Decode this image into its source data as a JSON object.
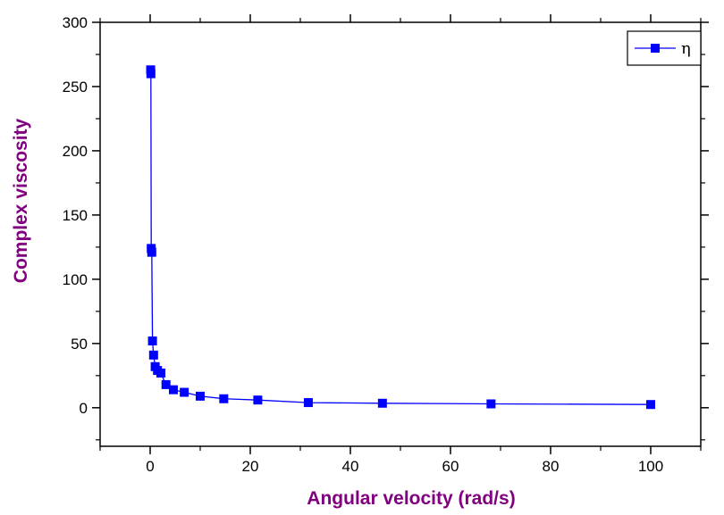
{
  "chart_data": {
    "type": "line",
    "title": "",
    "xlabel": "Angular velocity (rad/s)",
    "ylabel": "Complex viscosity",
    "xlim": [
      -10,
      110
    ],
    "ylim": [
      -30,
      300
    ],
    "xticks": [
      0,
      20,
      40,
      60,
      80,
      100
    ],
    "yticks": [
      0,
      50,
      100,
      150,
      200,
      250,
      300
    ],
    "grid": false,
    "legend_position": "top-right",
    "colors": {
      "series": "#0000ff",
      "axis_title": "#800080",
      "axis": "#000000"
    },
    "series": [
      {
        "name": "η",
        "marker": "square",
        "x": [
          0.1,
          0.147,
          0.215,
          0.316,
          0.464,
          0.681,
          1.0,
          1.47,
          2.15,
          3.16,
          4.64,
          6.81,
          10.0,
          14.7,
          21.5,
          31.6,
          46.4,
          68.1,
          100.0
        ],
        "y": [
          263,
          260,
          124,
          121,
          52,
          41,
          32,
          29,
          27,
          18,
          14,
          12,
          9,
          7,
          6,
          4,
          3.5,
          3,
          2.5
        ]
      }
    ]
  }
}
